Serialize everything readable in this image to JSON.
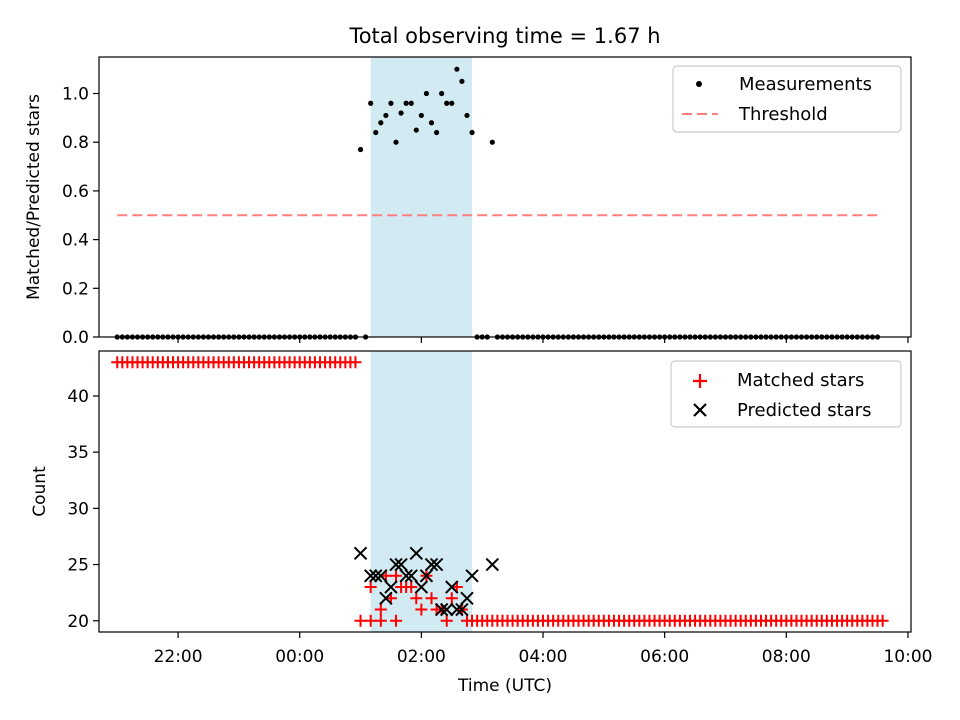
{
  "chart_data": [
    {
      "type": "scatter",
      "title": "Total observing time = 1.67 h",
      "ylabel": "Matched/Predicted stars",
      "xlabel": "",
      "ylim": [
        0,
        1.15
      ],
      "yticks": [
        "0.0",
        "0.2",
        "0.4",
        "0.6",
        "0.8",
        "1.0"
      ],
      "xlim_hours": [
        -3.3,
        10.05
      ],
      "xticks": [
        "22:00",
        "00:00",
        "02:00",
        "04:00",
        "06:00",
        "08:00",
        "10:00"
      ],
      "highlight_span": {
        "start": "01:10",
        "end": "02:50",
        "color": "#add8e6"
      },
      "legend": {
        "position": "upper right",
        "entries": [
          "Measurements",
          "Threshold"
        ]
      },
      "series": [
        {
          "name": "Measurements",
          "color": "#000000",
          "marker": "dot",
          "x_range": {
            "start": "21:00",
            "end": "09:30",
            "step_minutes": 5
          },
          "nonzero": [
            [
              "01:00",
              0.77
            ],
            [
              "01:10",
              0.96
            ],
            [
              "01:15",
              0.84
            ],
            [
              "01:20",
              0.88
            ],
            [
              "01:25",
              0.91
            ],
            [
              "01:30",
              0.96
            ],
            [
              "01:35",
              0.8
            ],
            [
              "01:40",
              0.92
            ],
            [
              "01:45",
              0.96
            ],
            [
              "01:50",
              0.96
            ],
            [
              "01:55",
              0.85
            ],
            [
              "02:00",
              0.91
            ],
            [
              "02:05",
              1.0
            ],
            [
              "02:10",
              0.88
            ],
            [
              "02:15",
              0.84
            ],
            [
              "02:20",
              1.0
            ],
            [
              "02:25",
              0.96
            ],
            [
              "02:30",
              0.96
            ],
            [
              "02:35",
              1.1
            ],
            [
              "02:40",
              1.05
            ],
            [
              "02:45",
              0.91
            ],
            [
              "02:50",
              0.84
            ],
            [
              "03:10",
              0.8
            ]
          ]
        },
        {
          "name": "Threshold",
          "color": "#ff7f7f",
          "style": "dashed",
          "x": [
            "21:00",
            "09:30"
          ],
          "y": [
            0.5,
            0.5
          ]
        }
      ]
    },
    {
      "type": "scatter",
      "title": "",
      "xlabel": "Time (UTC)",
      "ylabel": "Count",
      "ylim": [
        19,
        44
      ],
      "yticks": [
        "20",
        "25",
        "30",
        "35",
        "40"
      ],
      "xlim_hours": [
        -3.3,
        10.05
      ],
      "xticks": [
        "22:00",
        "00:00",
        "02:00",
        "04:00",
        "06:00",
        "08:00",
        "10:00"
      ],
      "highlight_span": {
        "start": "01:10",
        "end": "02:50",
        "color": "#add8e6"
      },
      "legend": {
        "position": "upper right",
        "entries": [
          "Matched stars",
          "Predicted stars"
        ]
      },
      "series": [
        {
          "name": "Matched stars",
          "color": "#ff0000",
          "marker": "plus",
          "baseline": [
            {
              "start": "21:00",
              "end": "00:55",
              "step_minutes": 5,
              "value": 43
            },
            {
              "start": "02:55",
              "end": "09:35",
              "step_minutes": 5,
              "value": 20
            }
          ],
          "points": [
            [
              "01:00",
              20
            ],
            [
              "01:10",
              23
            ],
            [
              "01:10",
              20
            ],
            [
              "01:20",
              21
            ],
            [
              "01:20",
              20
            ],
            [
              "01:25",
              24
            ],
            [
              "01:30",
              22
            ],
            [
              "01:35",
              20
            ],
            [
              "01:35",
              24
            ],
            [
              "01:40",
              23
            ],
            [
              "01:45",
              23
            ],
            [
              "01:50",
              23
            ],
            [
              "01:55",
              22
            ],
            [
              "02:00",
              21
            ],
            [
              "02:05",
              24
            ],
            [
              "02:10",
              22
            ],
            [
              "02:15",
              21
            ],
            [
              "02:20",
              21
            ],
            [
              "02:25",
              20
            ],
            [
              "02:30",
              22
            ],
            [
              "02:35",
              23
            ],
            [
              "02:40",
              21
            ],
            [
              "02:45",
              20
            ],
            [
              "02:50",
              20
            ]
          ]
        },
        {
          "name": "Predicted stars",
          "color": "#000000",
          "marker": "x",
          "points": [
            [
              "01:00",
              26
            ],
            [
              "01:10",
              24
            ],
            [
              "01:15",
              24
            ],
            [
              "01:20",
              24
            ],
            [
              "01:25",
              22
            ],
            [
              "01:30",
              23
            ],
            [
              "01:35",
              25
            ],
            [
              "01:40",
              25
            ],
            [
              "01:45",
              24
            ],
            [
              "01:50",
              24
            ],
            [
              "01:55",
              26
            ],
            [
              "02:00",
              23
            ],
            [
              "02:05",
              24
            ],
            [
              "02:10",
              25
            ],
            [
              "02:15",
              25
            ],
            [
              "02:20",
              21
            ],
            [
              "02:25",
              21
            ],
            [
              "02:30",
              23
            ],
            [
              "02:35",
              21
            ],
            [
              "02:40",
              21
            ],
            [
              "02:45",
              22
            ],
            [
              "02:50",
              24
            ],
            [
              "03:10",
              25
            ]
          ]
        }
      ]
    }
  ]
}
